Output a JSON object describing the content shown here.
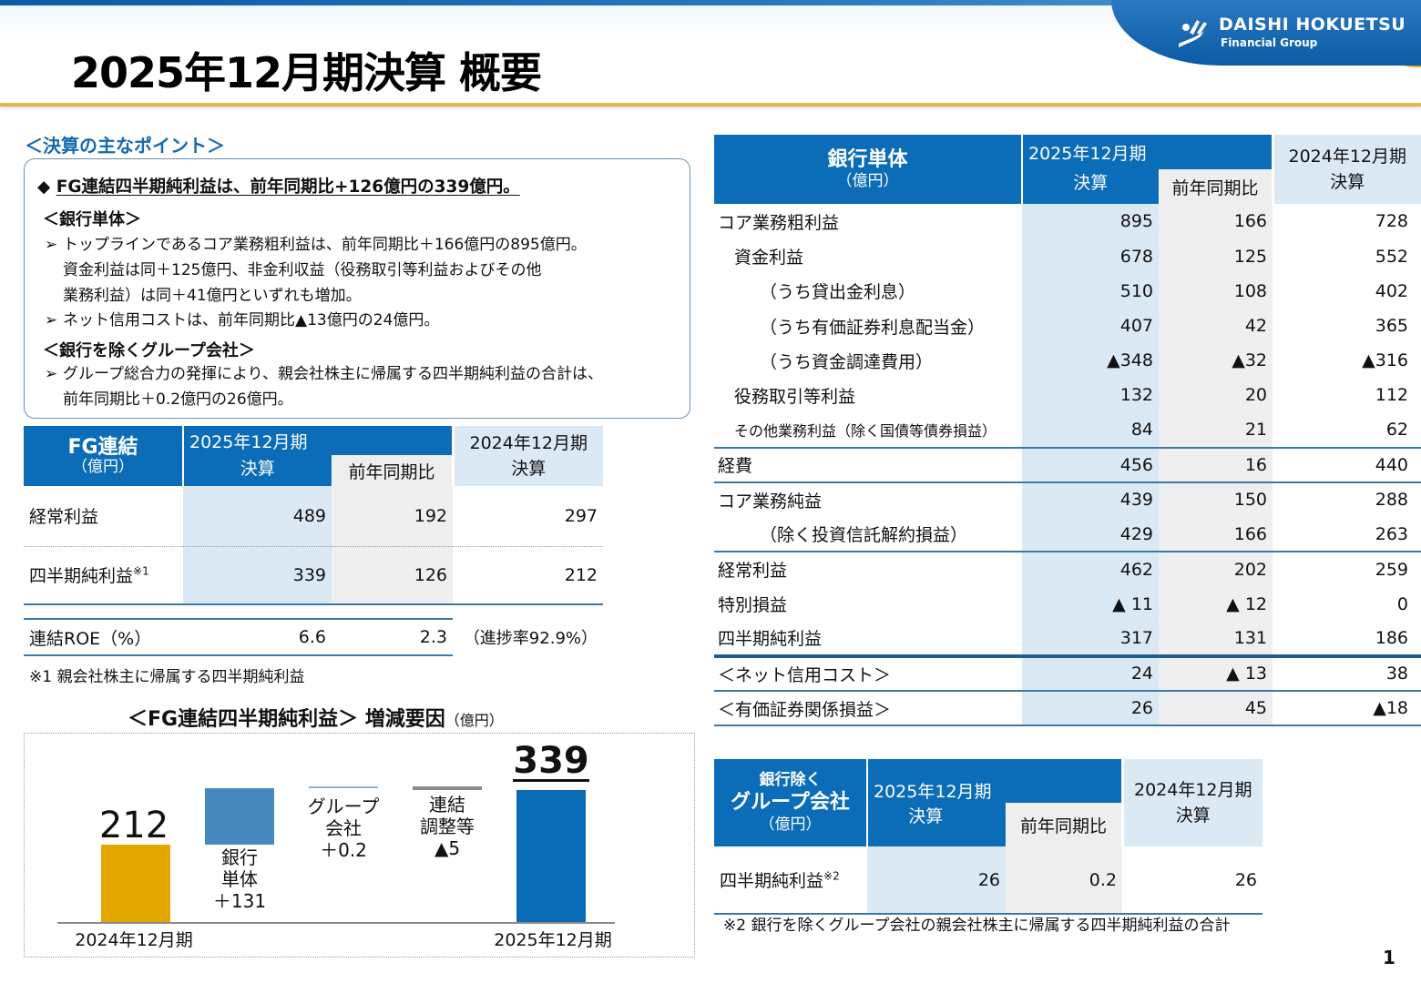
{
  "header": {
    "title": "2025年12月期決算 概要",
    "logo_line1": "DAISHI HOKUETSU",
    "logo_line2": "Financial Group",
    "logo_icon": "wave-hand-icon"
  },
  "points": {
    "heading": "＜決算の主なポイント＞",
    "main_bullet_icon": "◆",
    "main": "FG連結四半期純利益は、前年同期比+126億円の339億円。",
    "bank_heading": "＜銀行単体＞",
    "bank_items": [
      {
        "lines": [
          "トップラインであるコア業務粗利益は、前年同期比＋166億円の895億円。",
          "資金利益は同＋125億円、非金利収益（役務取引等利益およびその他",
          "業務利益）は同＋41億円といずれも増加。"
        ]
      },
      {
        "lines": [
          "ネット信用コストは、前年同期比▲13億円の24億円。"
        ]
      }
    ],
    "group_heading": "＜銀行を除くグループ会社＞",
    "group_items": [
      {
        "lines": [
          "グループ総合力の発揮により、親会社株主に帰属する四半期純利益の合計は、",
          "前年同期比＋0.2億円の26億円。"
        ]
      }
    ],
    "arrow_glyph": "➢"
  },
  "fg_table": {
    "title": "FG連結",
    "unit": "（億円）",
    "col_2025": "2025年12月期",
    "col_2025_sub": "決算",
    "col_yoy": "前年同期比",
    "col_2024": "2024年12月期",
    "col_2024_sub": "決算",
    "rows": [
      {
        "label": "経常利益",
        "sup": "",
        "v2025": "489",
        "yoy": "192",
        "v2024": "297"
      },
      {
        "label": "四半期純利益",
        "sup": "※1",
        "v2025": "339",
        "yoy": "126",
        "v2024": "212"
      }
    ],
    "roe": {
      "label": "連結ROE（%）",
      "v2025": "6.6",
      "yoy": "2.3",
      "note": "（進捗率92.9%）"
    },
    "footnote": "※1 親会社株主に帰属する四半期純利益"
  },
  "chart": {
    "title": "＜FG連結四半期純利益＞ 増減要因",
    "unit": "（億円）",
    "start_label": "212",
    "end_label": "339",
    "bank_label": [
      "銀行",
      "単体",
      "＋131"
    ],
    "group_label": [
      "グループ",
      "会社",
      "＋0.2"
    ],
    "adj_label": [
      "連結",
      "調整等",
      "▲5"
    ],
    "x_left": "2024年12月期",
    "x_right": "2025年12月期"
  },
  "chart_data": {
    "type": "bar",
    "title": "＜FG連結四半期純利益＞ 増減要因（億円）",
    "categories": [
      "2024年12月期",
      "銀行単体",
      "グループ会社",
      "連結調整等",
      "2025年12月期"
    ],
    "values": [
      212,
      131,
      0.2,
      -5,
      339
    ],
    "series": [
      {
        "name": "FG連結四半期純利益 (waterfall)",
        "values": [
          212,
          131,
          0.2,
          -5,
          339
        ]
      }
    ],
    "colors": [
      "#e2a800",
      "#4589bf",
      "#8fb3cf",
      "#8a8a8a",
      "#0a6bb5"
    ],
    "xlabel": "",
    "ylabel": "億円",
    "grid": false
  },
  "bank_table": {
    "title": "銀行単体",
    "unit": "（億円）",
    "col_2025": "2025年12月期",
    "col_2025_sub": "決算",
    "col_yoy": "前年同期比",
    "col_2024": "2024年12月期",
    "col_2024_sub": "決算",
    "rows": [
      {
        "label": "コア業務粗利益",
        "indent": 0,
        "v2025": "895",
        "yoy": "166",
        "v2024": "728"
      },
      {
        "label": "資金利益",
        "indent": 1,
        "v2025": "678",
        "yoy": "125",
        "v2024": "552"
      },
      {
        "label": "（うち貸出金利息）",
        "indent": 2,
        "v2025": "510",
        "yoy": "108",
        "v2024": "402"
      },
      {
        "label": "（うち有価証券利息配当金）",
        "indent": 2,
        "v2025": "407",
        "yoy": "42",
        "v2024": "365"
      },
      {
        "label": "（うち資金調達費用）",
        "indent": 2,
        "v2025": "▲348",
        "yoy": "▲32",
        "v2024": "▲316"
      },
      {
        "label": "役務取引等利益",
        "indent": 1,
        "v2025": "132",
        "yoy": "20",
        "v2024": "112"
      },
      {
        "label": "その他業務利益（除く国債等債券損益）",
        "indent": 1,
        "v2025": "84",
        "yoy": "21",
        "v2024": "62"
      },
      {
        "label": "経費",
        "indent": 0,
        "v2025": "456",
        "yoy": "16",
        "v2024": "440"
      },
      {
        "label": "コア業務純益",
        "indent": 0,
        "v2025": "439",
        "yoy": "150",
        "v2024": "288"
      },
      {
        "label": "（除く投資信託解約損益）",
        "indent": 2,
        "v2025": "429",
        "yoy": "166",
        "v2024": "263"
      },
      {
        "label": "経常利益",
        "indent": 0,
        "v2025": "462",
        "yoy": "202",
        "v2024": "259"
      },
      {
        "label": "特別損益",
        "indent": 0,
        "v2025": "▲ 11",
        "yoy": "▲ 12",
        "v2024": "0"
      },
      {
        "label": "四半期純利益",
        "indent": 0,
        "v2025": "317",
        "yoy": "131",
        "v2024": "186"
      },
      {
        "label": "＜ネット信用コスト＞",
        "indent": 0,
        "v2025": "24",
        "yoy": "▲ 13",
        "v2024": "38"
      },
      {
        "label": "＜有価証券関係損益＞",
        "indent": 0,
        "v2025": "26",
        "yoy": "45",
        "v2024": "▲18"
      }
    ]
  },
  "group_table": {
    "title1": "銀行除く",
    "title2": "グループ会社",
    "unit": "（億円）",
    "col_2025": "2025年12月期",
    "col_2025_sub": "決算",
    "col_yoy": "前年同期比",
    "col_2024": "2024年12月期",
    "col_2024_sub": "決算",
    "row": {
      "label": "四半期純利益",
      "sup": "※2",
      "v2025": "26",
      "yoy": "0.2",
      "v2024": "26"
    },
    "footnote": "※2 銀行を除くグループ会社の親会社株主に帰属する四半期純利益の合計"
  },
  "page_number": "1",
  "colors": {
    "brand_blue": "#0b6cb7",
    "light_blue": "#dbe9f5",
    "gray_cell": "#efefef",
    "gold": "#e2a800",
    "rule": "#3a7aa8"
  }
}
